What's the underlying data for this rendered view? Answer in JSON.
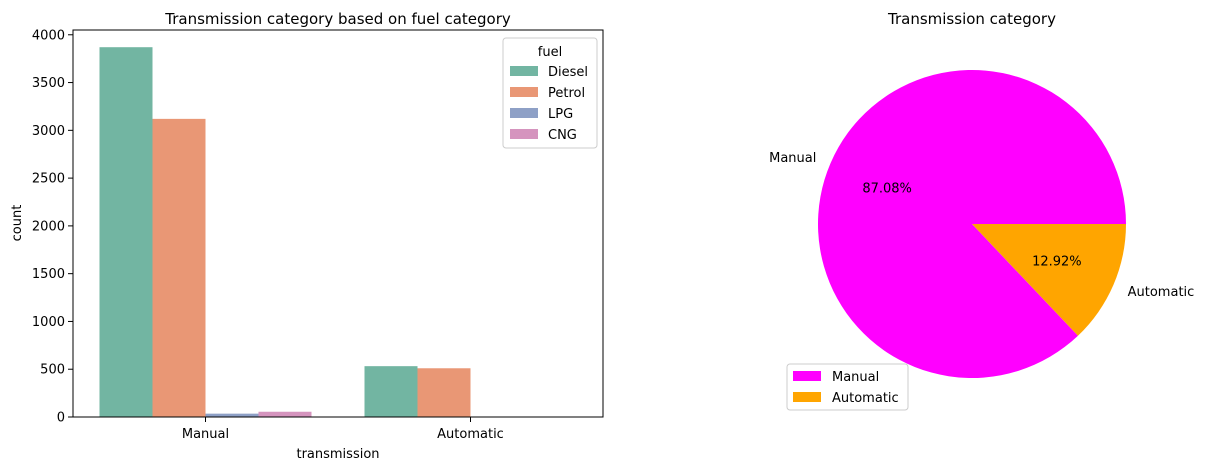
{
  "chart_data": [
    {
      "type": "bar",
      "title": "Transmission category based on fuel category",
      "xlabel": "transmission",
      "ylabel": "count",
      "categories": [
        "Manual",
        "Automatic"
      ],
      "ylim": [
        0,
        4050
      ],
      "yticks": [
        0,
        500,
        1000,
        1500,
        2000,
        2500,
        3000,
        3500,
        4000
      ],
      "legend": {
        "title": "fuel",
        "position": "top-right"
      },
      "series": [
        {
          "name": "Diesel",
          "color": "#72b5a2",
          "values": [
            3870,
            532
          ]
        },
        {
          "name": "Petrol",
          "color": "#e99775",
          "values": [
            3120,
            510
          ]
        },
        {
          "name": "LPG",
          "color": "#8ea0c6",
          "values": [
            35,
            0
          ]
        },
        {
          "name": "CNG",
          "color": "#d594be",
          "values": [
            55,
            0
          ]
        }
      ]
    },
    {
      "type": "pie",
      "title": "Transmission category",
      "legend": {
        "position": "bottom-left"
      },
      "slices": [
        {
          "label": "Manual",
          "value": 87.08,
          "pct_label": "87.08%",
          "color": "#ff00ff"
        },
        {
          "label": "Automatic",
          "value": 12.92,
          "pct_label": "12.92%",
          "color": "#ffa500"
        }
      ]
    }
  ]
}
